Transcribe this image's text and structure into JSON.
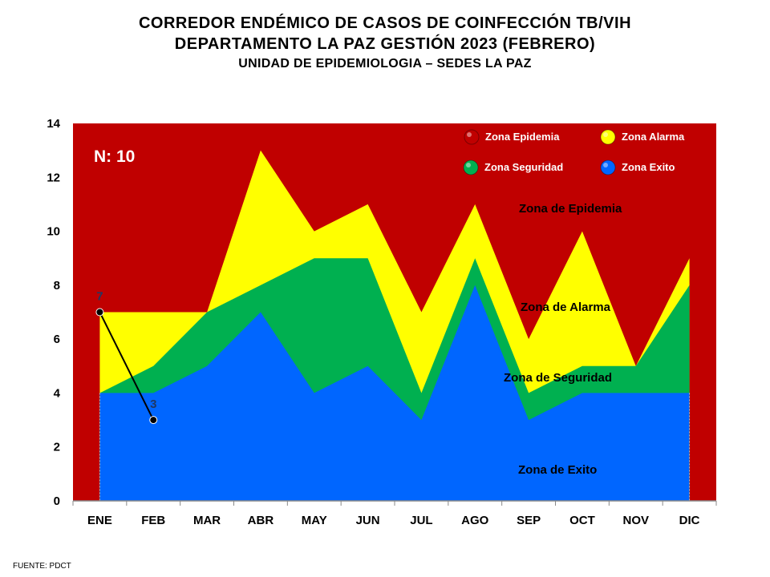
{
  "titles": {
    "line1": "CORREDOR ENDÉMICO DE CASOS DE COINFECCIÓN TB/VIH",
    "line2": "DEPARTAMENTO  LA PAZ GESTIÓN 2023 (FEBRERO)",
    "line3": "UNIDAD DE EPIDEMIOLOGIA – SEDES LA PAZ"
  },
  "source": "FUENTE:   PDCT",
  "chart_data": {
    "type": "area",
    "categories": [
      "ENE",
      "FEB",
      "MAR",
      "ABR",
      "MAY",
      "JUN",
      "JUL",
      "AGO",
      "SEP",
      "OCT",
      "NOV",
      "DIC"
    ],
    "ylim": [
      0,
      14
    ],
    "yticks": [
      0,
      2,
      4,
      6,
      8,
      10,
      12,
      14
    ],
    "grid": false,
    "n_label": "N: 10",
    "series": [
      {
        "name": "Zona Exito",
        "color": "#0066ff",
        "values": [
          4,
          4,
          5,
          7,
          4,
          5,
          3,
          8,
          3,
          4,
          4,
          4
        ]
      },
      {
        "name": "Zona Seguridad",
        "color": "#00b050",
        "values": [
          4,
          5,
          7,
          8,
          9,
          9,
          4,
          9,
          4,
          5,
          5,
          8
        ]
      },
      {
        "name": "Zona Alarma",
        "color": "#ffff00",
        "values": [
          7,
          7,
          7,
          13,
          10,
          11,
          7,
          11,
          6,
          10,
          5,
          9
        ]
      },
      {
        "name": "Zona Epidemia",
        "color": "#c00000",
        "values": [
          14,
          14,
          14,
          14,
          14,
          14,
          14,
          14,
          14,
          14,
          14,
          14
        ]
      }
    ],
    "cases": {
      "values": [
        7,
        3
      ],
      "labels": [
        "7",
        "3"
      ]
    },
    "zone_labels": {
      "epidemia": "Zona de Epidemia",
      "alarma": "Zona de Alarma",
      "seguridad": "Zona de Seguridad",
      "exito": "Zona de Exito"
    },
    "legend_position": "top-right"
  }
}
